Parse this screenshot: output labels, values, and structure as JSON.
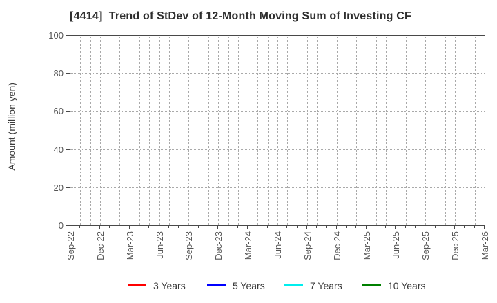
{
  "chart_data": {
    "type": "line",
    "title": "[4414]  Trend of StDev of 12-Month Moving Sum of Investing CF",
    "xlabel": "",
    "ylabel": "Amount (million yen)",
    "ylim": [
      0,
      100
    ],
    "yticks": [
      0,
      20,
      40,
      60,
      80,
      100
    ],
    "x_tick_labels": [
      "Sep-22",
      "Dec-22",
      "Mar-23",
      "Jun-23",
      "Sep-23",
      "Dec-23",
      "Mar-24",
      "Jun-24",
      "Sep-24",
      "Dec-24",
      "Mar-25",
      "Jun-25",
      "Sep-25",
      "Dec-25",
      "Mar-26"
    ],
    "months_per_labeled_tick": 3,
    "total_month_intervals": 42,
    "grid": true,
    "grid_style": "dotted",
    "legend_position": "bottom",
    "series": [
      {
        "name": "3 Years",
        "color": "#ff0000",
        "values": []
      },
      {
        "name": "5 Years",
        "color": "#0000ff",
        "values": []
      },
      {
        "name": "7 Years",
        "color": "#00eeee",
        "values": []
      },
      {
        "name": "10 Years",
        "color": "#008000",
        "values": []
      }
    ]
  }
}
